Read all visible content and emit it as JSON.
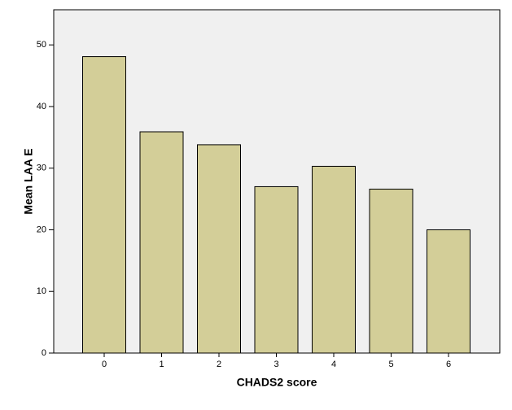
{
  "chart_data": {
    "type": "bar",
    "x_label": "CHADS2 score",
    "y_label": "Mean LAA E",
    "categories": [
      "0",
      "1",
      "2",
      "3",
      "4",
      "5",
      "6"
    ],
    "values": [
      48.1,
      35.9,
      33.8,
      27.0,
      30.3,
      26.6,
      20.0
    ],
    "color": "#d3ce98",
    "ylim": [
      0,
      55.7
    ],
    "yticks": [
      0,
      10,
      20,
      30,
      40,
      50
    ],
    "grid": false
  }
}
